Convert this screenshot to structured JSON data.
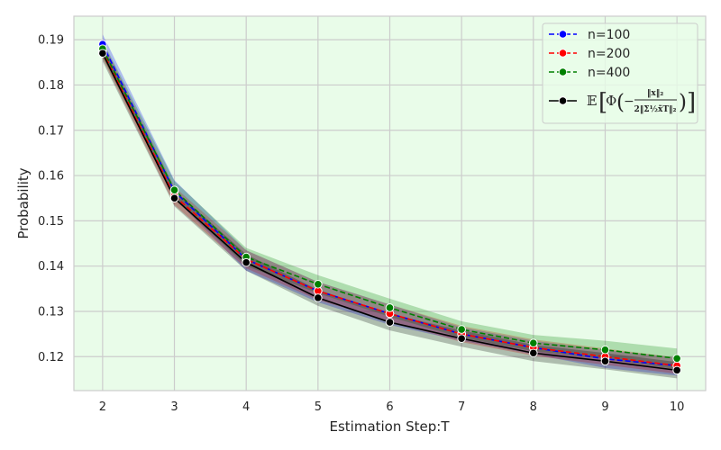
{
  "chart_data": {
    "type": "line",
    "xlabel": "Estimation Step:T",
    "ylabel": "Probability",
    "xlim": [
      1.6,
      10.4
    ],
    "ylim": [
      0.1125,
      0.1952
    ],
    "x": [
      2,
      3,
      4,
      5,
      6,
      7,
      8,
      9,
      10
    ],
    "xticks": [
      "2",
      "3",
      "4",
      "5",
      "6",
      "7",
      "8",
      "9",
      "10"
    ],
    "yticks": [
      "0.12",
      "0.13",
      "0.14",
      "0.15",
      "0.16",
      "0.17",
      "0.18",
      "0.19"
    ],
    "ytick_values": [
      0.12,
      0.13,
      0.14,
      0.15,
      0.16,
      0.17,
      0.18,
      0.19
    ],
    "grid": true,
    "background": "#e9fce9",
    "legend_position": "top-right",
    "series": [
      {
        "name": "n=100",
        "color": "#0000ff",
        "style": "dashed",
        "values": [
          0.189,
          0.1565,
          0.1415,
          0.1345,
          0.1295,
          0.125,
          0.122,
          0.1195,
          0.118
        ],
        "lower": [
          0.1875,
          0.155,
          0.139,
          0.132,
          0.127,
          0.1235,
          0.1205,
          0.1175,
          0.1158
        ],
        "upper": [
          0.1912,
          0.159,
          0.1435,
          0.1365,
          0.1315,
          0.1265,
          0.1235,
          0.1215,
          0.1198
        ]
      },
      {
        "name": "n=200",
        "color": "#ff0000",
        "style": "dashed",
        "values": [
          0.1875,
          0.1555,
          0.1415,
          0.1345,
          0.1295,
          0.125,
          0.122,
          0.12,
          0.118
        ],
        "lower": [
          0.1858,
          0.1535,
          0.1395,
          0.1325,
          0.1278,
          0.1232,
          0.1202,
          0.1182,
          0.1162
        ],
        "upper": [
          0.1895,
          0.1575,
          0.1435,
          0.1365,
          0.1315,
          0.1268,
          0.1238,
          0.1218,
          0.1198
        ]
      },
      {
        "name": "n=400",
        "color": "#008000",
        "style": "dashed",
        "values": [
          0.188,
          0.1568,
          0.142,
          0.136,
          0.1308,
          0.126,
          0.123,
          0.1215,
          0.1196
        ],
        "lower": [
          0.1862,
          0.155,
          0.14,
          0.134,
          0.1288,
          0.1242,
          0.1212,
          0.1195,
          0.1172
        ],
        "upper": [
          0.1898,
          0.1588,
          0.144,
          0.138,
          0.1328,
          0.1278,
          0.1248,
          0.1235,
          0.1218
        ]
      },
      {
        "name": "𝔼[Φ(−‖x‖₂ / 2‖Σ^½ x̃_T‖₂)]",
        "color": "#000000",
        "style": "solid",
        "values": [
          0.187,
          0.155,
          0.1408,
          0.133,
          0.1276,
          0.124,
          0.1208,
          0.119,
          0.117
        ],
        "lower": [
          0.1852,
          0.1532,
          0.139,
          0.1312,
          0.1258,
          0.1222,
          0.119,
          0.1172,
          0.1152
        ],
        "upper": [
          0.1888,
          0.1568,
          0.1426,
          0.1348,
          0.1294,
          0.1258,
          0.1226,
          0.1208,
          0.1188
        ]
      }
    ]
  }
}
